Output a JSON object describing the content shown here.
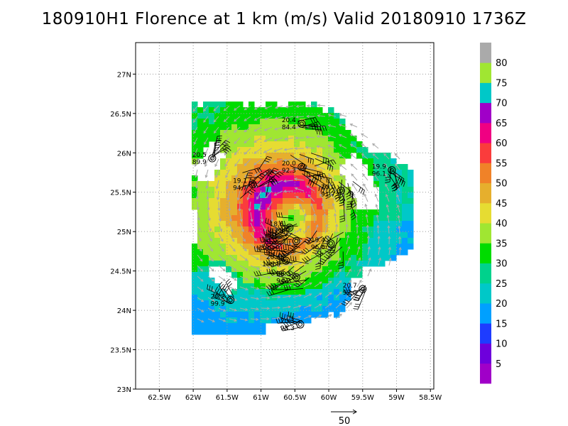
{
  "chart_data": {
    "type": "heatmap",
    "title": "180910H1 Florence at 1 km (m/s) Valid 20180910 1736Z",
    "x_ticks": [
      "62.5W",
      "62W",
      "61.5W",
      "61W",
      "60.5W",
      "60W",
      "59.5W",
      "59W",
      "58.5W"
    ],
    "y_ticks": [
      "27N",
      "26.5N",
      "26N",
      "25.5N",
      "25N",
      "24.5N",
      "24N",
      "23.5N",
      "23N"
    ],
    "xlim": [
      -62.85,
      -58.45
    ],
    "ylim": [
      23.0,
      27.4
    ],
    "grid": true,
    "storm_center": {
      "lon": -60.6,
      "lat": 25.2
    },
    "colorbar": {
      "levels": [
        5,
        10,
        15,
        20,
        25,
        30,
        35,
        40,
        45,
        50,
        55,
        60,
        65,
        70,
        75,
        80
      ],
      "labels": [
        "5",
        "10",
        "15",
        "20",
        "25",
        "30",
        "35",
        "40",
        "45",
        "50",
        "55",
        "60",
        "65",
        "70",
        "75",
        "80"
      ],
      "colors": [
        "#a000c8",
        "#6e00dc",
        "#1e3cff",
        "#00a0ff",
        "#00c8c8",
        "#00d28c",
        "#00dc00",
        "#a0e632",
        "#e6dc32",
        "#e6af2d",
        "#f08228",
        "#fa3c3c",
        "#f00082",
        "#a000c8",
        "#00c8c8",
        "#a0e632",
        "#aaaaaa"
      ]
    },
    "wind_field": {
      "peak_speed": 62,
      "rmw_km": 45,
      "gradient_direction": "southwest",
      "coverage": "irregular swath around center, gaps in northeast and south"
    },
    "stations": [
      {
        "lon": -61.72,
        "lat": 25.93,
        "top": "20.5",
        "bottom": "89.9"
      },
      {
        "lon": -60.4,
        "lat": 26.37,
        "top": "20.4",
        "bottom": "84.4"
      },
      {
        "lon": -60.4,
        "lat": 25.82,
        "top": "20.0",
        "bottom": "92.3"
      },
      {
        "lon": -61.12,
        "lat": 25.6,
        "top": "19.1",
        "bottom": "94.7"
      },
      {
        "lon": -59.07,
        "lat": 25.78,
        "top": "19.9",
        "bottom": "96.1"
      },
      {
        "lon": -59.82,
        "lat": 25.52,
        "top": "20.0",
        "bottom": "91.7"
      },
      {
        "lon": -60.58,
        "lat": 25.05,
        "top": "18.6",
        "bottom": "93.0"
      },
      {
        "lon": -60.48,
        "lat": 24.88,
        "top": "",
        "bottom": ""
      },
      {
        "lon": -59.97,
        "lat": 24.85,
        "top": "19.4",
        "bottom": "96.6"
      },
      {
        "lon": -60.63,
        "lat": 24.63,
        "top": "20.4",
        "bottom": "100.0"
      },
      {
        "lon": -60.48,
        "lat": 24.42,
        "top": "20.3",
        "bottom": "94.2"
      },
      {
        "lon": -61.45,
        "lat": 24.13,
        "top": "20.2",
        "bottom": "99.9"
      },
      {
        "lon": -59.5,
        "lat": 24.27,
        "top": "20.7",
        "bottom": "92.0"
      },
      {
        "lon": -60.42,
        "lat": 23.82,
        "top": "20.3",
        "bottom": "98.3"
      }
    ],
    "reference_vector": {
      "label": "50"
    }
  }
}
